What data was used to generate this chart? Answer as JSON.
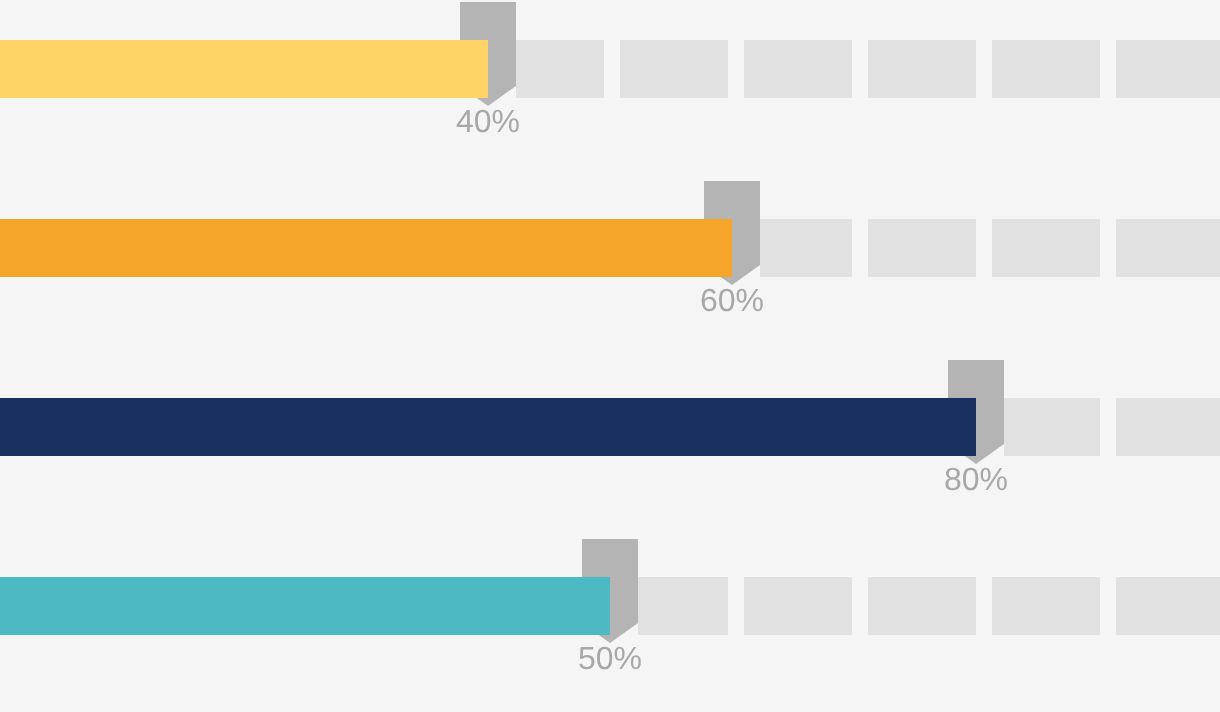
{
  "chart_data": {
    "type": "bar",
    "orientation": "horizontal",
    "categories": [
      null,
      null,
      null,
      null
    ],
    "values": [
      40,
      60,
      80,
      50
    ],
    "colors": [
      "#ffd466",
      "#f4a52a",
      "#1a3160",
      "#4db9c2"
    ],
    "value_labels": [
      "40%",
      "60%",
      "80%",
      "50%"
    ]
  }
}
